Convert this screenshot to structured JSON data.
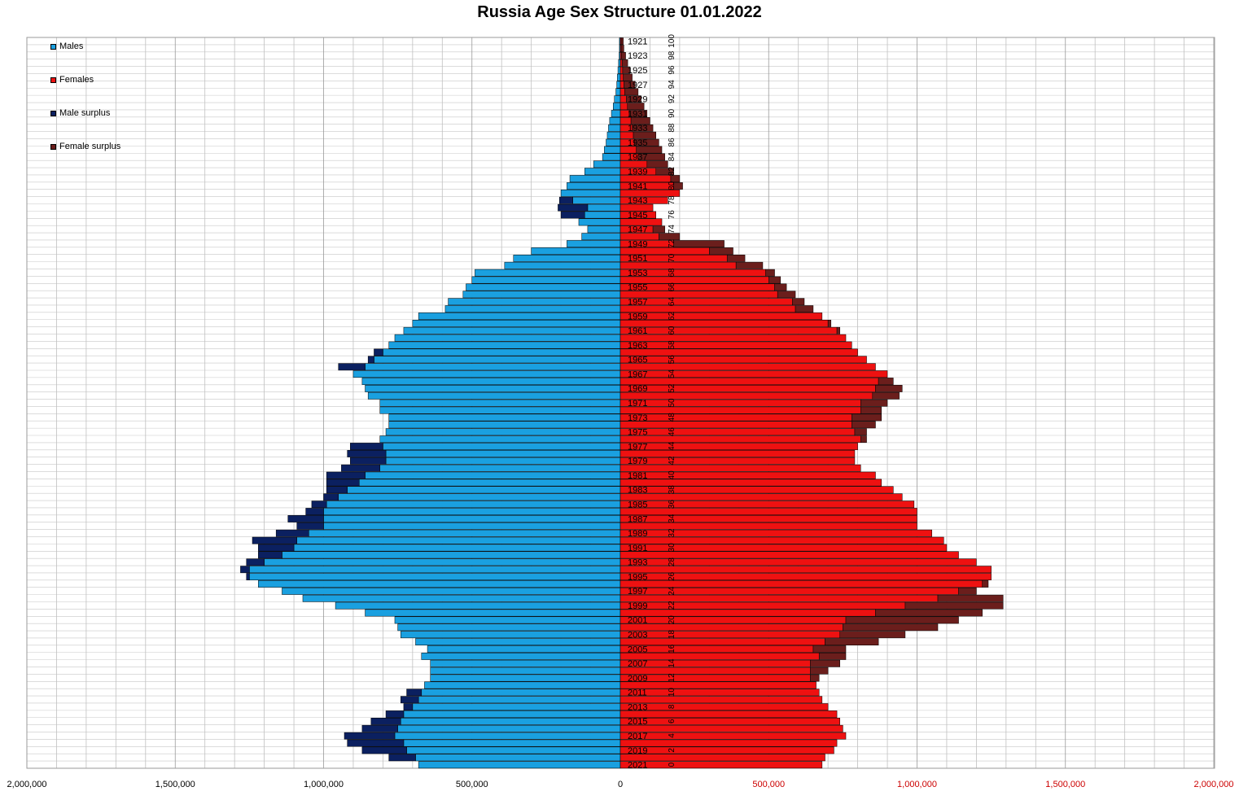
{
  "chart_data": {
    "type": "bar",
    "title": "Russia Age Sex Structure 01.01.2022",
    "orientation": "horizontal-pyramid",
    "legend": [
      {
        "name": "Males",
        "color": "#1aa0e0"
      },
      {
        "name": "Females",
        "color": "#ee1111"
      },
      {
        "name": "Male surplus",
        "color": "#0b2060"
      },
      {
        "name": "Female surplus",
        "color": "#6b1e1c"
      }
    ],
    "legend_position": "top-left",
    "grid": true,
    "x_ticks_left": [
      "2,000,000",
      "1,500,000",
      "1,000,000",
      "500,000",
      "0"
    ],
    "x_ticks_right": [
      "500,000",
      "1,000,000",
      "1,500,000",
      "2,000,000"
    ],
    "xlim": [
      -2000000,
      2000000
    ],
    "year_labels": [
      "1921",
      "1923",
      "1925",
      "1927",
      "1929",
      "1931",
      "1933",
      "1935",
      "1937",
      "1939",
      "1941",
      "1943",
      "1945",
      "1947",
      "1949",
      "1951",
      "1953",
      "1955",
      "1957",
      "1959",
      "1961",
      "1963",
      "1965",
      "1967",
      "1969",
      "1971",
      "1973",
      "1975",
      "1977",
      "1979",
      "1981",
      "1983",
      "1985",
      "1987",
      "1989",
      "1991",
      "1993",
      "1995",
      "1997",
      "1999",
      "2001",
      "2003",
      "2005",
      "2007",
      "2009",
      "2011",
      "2013",
      "2015",
      "2017",
      "2019",
      "2021"
    ],
    "age_labels": [
      "100",
      "98",
      "96",
      "94",
      "92",
      "90",
      "88",
      "86",
      "84",
      "82",
      "80",
      "78",
      "76",
      "74",
      "72",
      "70",
      "68",
      "66",
      "64",
      "62",
      "60",
      "58",
      "56",
      "54",
      "52",
      "50",
      "48",
      "46",
      "44",
      "42",
      "40",
      "38",
      "36",
      "34",
      "32",
      "30",
      "28",
      "26",
      "24",
      "22",
      "20",
      "18",
      "16",
      "14",
      "12",
      "10",
      "8",
      "6",
      "4",
      "2",
      "0"
    ],
    "ages_top_to_bottom": [
      100,
      99,
      98,
      97,
      96,
      95,
      94,
      93,
      92,
      91,
      90,
      89,
      88,
      87,
      86,
      85,
      84,
      83,
      82,
      81,
      80,
      79,
      78,
      77,
      76,
      75,
      74,
      73,
      72,
      71,
      70,
      69,
      68,
      67,
      66,
      65,
      64,
      63,
      62,
      61,
      60,
      59,
      58,
      57,
      56,
      55,
      54,
      53,
      52,
      51,
      50,
      49,
      48,
      47,
      46,
      45,
      44,
      43,
      42,
      41,
      40,
      39,
      38,
      37,
      36,
      35,
      34,
      33,
      32,
      31,
      30,
      29,
      28,
      27,
      26,
      25,
      24,
      23,
      22,
      21,
      20,
      19,
      18,
      17,
      16,
      15,
      14,
      13,
      12,
      11,
      10,
      9,
      8,
      7,
      6,
      5,
      4,
      3,
      2,
      1,
      0
    ],
    "males": [
      3000,
      3000,
      4000,
      6000,
      8000,
      10000,
      12000,
      15000,
      20000,
      24000,
      30000,
      36000,
      40000,
      44000,
      48000,
      54000,
      60000,
      90000,
      120000,
      170000,
      180000,
      200000,
      205000,
      210000,
      200000,
      140000,
      110000,
      130000,
      180000,
      300000,
      360000,
      390000,
      490000,
      500000,
      520000,
      530000,
      580000,
      590000,
      680000,
      700000,
      730000,
      760000,
      780000,
      830000,
      850000,
      950000,
      900000,
      870000,
      860000,
      850000,
      810000,
      810000,
      780000,
      780000,
      790000,
      810000,
      910000,
      920000,
      910000,
      940000,
      990000,
      990000,
      990000,
      1000000,
      1040000,
      1060000,
      1120000,
      1090000,
      1160000,
      1240000,
      1220000,
      1220000,
      1260000,
      1280000,
      1260000,
      1220000,
      1140000,
      1070000,
      960000,
      860000,
      760000,
      750000,
      740000,
      690000,
      650000,
      670000,
      640000,
      640000,
      640000,
      660000,
      720000,
      740000,
      730000,
      790000,
      840000,
      870000,
      930000,
      920000,
      870000,
      780000,
      680000
    ],
    "females": [
      10000,
      12000,
      18000,
      25000,
      32000,
      40000,
      50000,
      60000,
      70000,
      80000,
      90000,
      100000,
      110000,
      120000,
      130000,
      140000,
      150000,
      160000,
      180000,
      200000,
      210000,
      200000,
      160000,
      110000,
      120000,
      140000,
      150000,
      200000,
      350000,
      380000,
      420000,
      480000,
      520000,
      540000,
      560000,
      590000,
      620000,
      650000,
      680000,
      710000,
      740000,
      760000,
      780000,
      800000,
      830000,
      860000,
      900000,
      920000,
      950000,
      940000,
      900000,
      880000,
      880000,
      860000,
      830000,
      830000,
      800000,
      790000,
      790000,
      810000,
      860000,
      880000,
      920000,
      950000,
      990000,
      1000000,
      1000000,
      1000000,
      1050000,
      1090000,
      1100000,
      1140000,
      1200000,
      1250000,
      1250000,
      1240000,
      1200000,
      1290000,
      1290000,
      1220000,
      1140000,
      1070000,
      960000,
      870000,
      760000,
      760000,
      740000,
      700000,
      670000,
      660000,
      670000,
      680000,
      700000,
      730000,
      740000,
      750000,
      760000,
      730000,
      720000,
      690000,
      680000
    ]
  }
}
